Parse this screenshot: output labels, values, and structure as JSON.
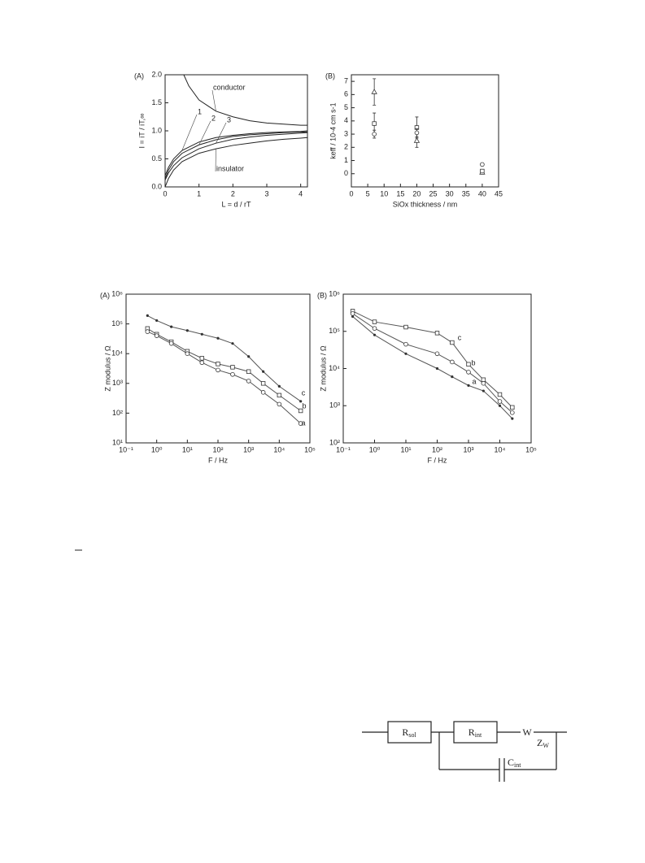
{
  "chart_data": [
    {
      "type": "line",
      "panel": "(A)",
      "xlabel": "L = d / rT",
      "ylabel": "I = iT / iT,∞",
      "color": "#222",
      "xlim": [
        0,
        4.2
      ],
      "ylim": [
        0,
        2
      ],
      "xticks": [
        0,
        1,
        2,
        3,
        4
      ],
      "yticks": [
        {
          "value": 0,
          "label": "0.0"
        },
        {
          "value": 0.5,
          "label": "0.5"
        },
        {
          "value": 1,
          "label": "1.0"
        },
        {
          "value": 1.5,
          "label": "1.5"
        },
        {
          "value": 2,
          "label": "2.0"
        }
      ],
      "series": [
        {
          "name": "conductor",
          "x": [
            0.55,
            0.7,
            1,
            1.5,
            2,
            2.5,
            3,
            3.5,
            4,
            4.2
          ],
          "values": [
            2,
            1.8,
            1.55,
            1.35,
            1.25,
            1.18,
            1.14,
            1.12,
            1.1,
            1.1
          ]
        },
        {
          "name": "1",
          "x": [
            0,
            0.1,
            0.25,
            0.5,
            1,
            1.5,
            2,
            2.5,
            3,
            3.5,
            4,
            4.2
          ],
          "values": [
            0.2,
            0.35,
            0.5,
            0.65,
            0.8,
            0.88,
            0.92,
            0.95,
            0.97,
            0.98,
            0.99,
            1.0
          ]
        },
        {
          "name": "2",
          "x": [
            0,
            0.1,
            0.25,
            0.5,
            1,
            1.5,
            2,
            2.5,
            3,
            3.5,
            4,
            4.2
          ],
          "values": [
            0.15,
            0.3,
            0.45,
            0.6,
            0.75,
            0.84,
            0.9,
            0.93,
            0.95,
            0.97,
            0.98,
            0.98
          ]
        },
        {
          "name": "3",
          "x": [
            0,
            0.1,
            0.25,
            0.5,
            1,
            1.5,
            2,
            2.5,
            3,
            3.5,
            4,
            4.2
          ],
          "values": [
            0.12,
            0.25,
            0.38,
            0.52,
            0.68,
            0.78,
            0.85,
            0.89,
            0.92,
            0.94,
            0.96,
            0.97
          ]
        },
        {
          "name": "insulator",
          "x": [
            0,
            0.1,
            0.25,
            0.5,
            1,
            1.5,
            2,
            2.5,
            3,
            3.5,
            4,
            4.2
          ],
          "values": [
            0,
            0.15,
            0.3,
            0.45,
            0.6,
            0.68,
            0.74,
            0.78,
            0.82,
            0.85,
            0.87,
            0.88
          ]
        }
      ]
    },
    {
      "type": "scatter",
      "panel": "(B)",
      "xlabel": "SiOx thickness / nm",
      "ylabel": "keff / 10-4 cm s-1",
      "color": "#333",
      "xlim": [
        0,
        45
      ],
      "ylim": [
        -1,
        7.5
      ],
      "xticks": [
        0,
        5,
        10,
        15,
        20,
        25,
        30,
        35,
        40,
        45
      ],
      "yticks": [
        0,
        1,
        2,
        3,
        4,
        5,
        6,
        7
      ],
      "series": [
        {
          "marker": "triangle",
          "x": [
            7,
            20,
            40
          ],
          "values": [
            6.2,
            2.5,
            0.1
          ],
          "errors": [
            1,
            0.5,
            0.1
          ]
        },
        {
          "marker": "square",
          "x": [
            7,
            20,
            40
          ],
          "values": [
            3.8,
            3.5,
            0.2
          ],
          "errors": [
            0.8,
            0.8,
            0.1
          ]
        },
        {
          "marker": "circle",
          "x": [
            7,
            20,
            40
          ],
          "values": [
            3.0,
            3.1,
            0.7
          ],
          "errors": [
            0.3,
            0.3,
            0.1
          ]
        }
      ]
    },
    {
      "type": "line",
      "panel": "(A)",
      "xlabel": "F / Hz",
      "ylabel": "Z modulus / Ω",
      "color": "#555",
      "xscale": "log",
      "yscale": "log",
      "xlim": [
        0.1,
        100000
      ],
      "ylim": [
        10,
        1000000
      ],
      "xticks": [
        {
          "value": 0.1,
          "label": "10⁻¹"
        },
        {
          "value": 1,
          "label": "10⁰"
        },
        {
          "value": 10,
          "label": "10¹"
        },
        {
          "value": 100,
          "label": "10²"
        },
        {
          "value": 1000,
          "label": "10³"
        },
        {
          "value": 10000,
          "label": "10⁴"
        },
        {
          "value": 100000,
          "label": "10⁵"
        }
      ],
      "yticks": [
        {
          "value": 10,
          "label": "10¹"
        },
        {
          "value": 100,
          "label": "10²"
        },
        {
          "value": 1000,
          "label": "10³"
        },
        {
          "value": 10000,
          "label": "10⁴"
        },
        {
          "value": 100000,
          "label": "10⁵"
        },
        {
          "value": 1000000,
          "label": "10⁶"
        }
      ],
      "series": [
        {
          "name": "c",
          "marker": "dot",
          "x": [
            0.5,
            1,
            3,
            10,
            30,
            100,
            300,
            1000,
            3000,
            10000,
            50000
          ],
          "values": [
            190000,
            130000,
            80000,
            60000,
            45000,
            33000,
            22000,
            8000,
            2500,
            800,
            250
          ]
        },
        {
          "name": "b",
          "marker": "square",
          "x": [
            0.5,
            1,
            3,
            10,
            30,
            100,
            300,
            1000,
            3000,
            10000,
            50000
          ],
          "values": [
            70000,
            45000,
            25000,
            12000,
            7000,
            4500,
            3500,
            2500,
            1000,
            400,
            120
          ]
        },
        {
          "name": "a",
          "marker": "circle",
          "x": [
            0.5,
            1,
            3,
            10,
            30,
            100,
            300,
            1000,
            3000,
            10000,
            50000
          ],
          "values": [
            55000,
            40000,
            22000,
            10000,
            5000,
            2800,
            2000,
            1200,
            500,
            200,
            45
          ]
        }
      ]
    },
    {
      "type": "line",
      "panel": "(B)",
      "xlabel": "F / Hz",
      "ylabel": "Z modulus / Ω",
      "color": "#555",
      "xscale": "log",
      "yscale": "log",
      "xlim": [
        0.1,
        100000
      ],
      "ylim": [
        100,
        1000000
      ],
      "xticks": [
        {
          "value": 0.1,
          "label": "10⁻¹"
        },
        {
          "value": 1,
          "label": "10⁰"
        },
        {
          "value": 10,
          "label": "10¹"
        },
        {
          "value": 100,
          "label": "10²"
        },
        {
          "value": 1000,
          "label": "10³"
        },
        {
          "value": 10000,
          "label": "10⁴"
        },
        {
          "value": 100000,
          "label": "10⁵"
        }
      ],
      "yticks": [
        {
          "value": 100,
          "label": "10²"
        },
        {
          "value": 1000,
          "label": "10³"
        },
        {
          "value": 10000,
          "label": "10⁴"
        },
        {
          "value": 100000,
          "label": "10⁵"
        },
        {
          "value": 1000000,
          "label": "10⁶"
        }
      ],
      "series": [
        {
          "name": "c",
          "marker": "square",
          "x": [
            0.2,
            1,
            10,
            100,
            300,
            1000,
            3000,
            10000,
            25000
          ],
          "values": [
            350000,
            180000,
            130000,
            90000,
            50000,
            13000,
            5000,
            2000,
            900
          ]
        },
        {
          "name": "b",
          "marker": "circle",
          "x": [
            0.2,
            1,
            10,
            100,
            300,
            1000,
            3000,
            10000,
            25000
          ],
          "values": [
            300000,
            120000,
            45000,
            25000,
            15000,
            8000,
            4000,
            1300,
            650
          ]
        },
        {
          "name": "a",
          "marker": "dot",
          "x": [
            0.2,
            1,
            10,
            100,
            300,
            1000,
            3000,
            10000,
            25000
          ],
          "values": [
            250000,
            80000,
            25000,
            10000,
            6000,
            3500,
            2500,
            1000,
            450
          ]
        }
      ]
    }
  ],
  "circuit": {
    "r_sol": {
      "main": "R",
      "sub": "sol"
    },
    "r_int": {
      "main": "R",
      "sub": "int"
    },
    "w": "W",
    "z_w": {
      "main": "Z",
      "sub": "W"
    },
    "c_int": {
      "main": "C",
      "sub": "int"
    }
  }
}
